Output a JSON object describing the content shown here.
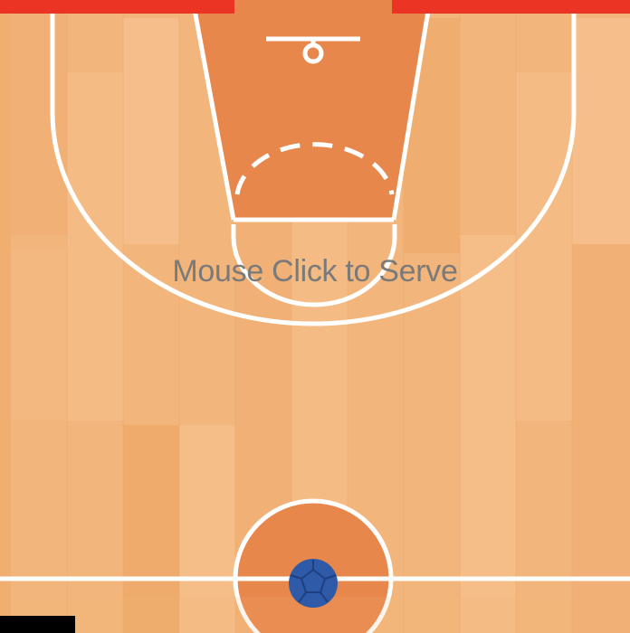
{
  "game": {
    "serve_message": "Mouse Click to Serve"
  },
  "colors": {
    "bricks": "#ec3425",
    "court_floor": "#f2b57b",
    "paint": "#e8874c",
    "court_lines": "#ffffff",
    "ball": "#2e5aa8",
    "message_text": "#7a7a7a",
    "paddle": "#000000"
  },
  "icons": {
    "ball": "ball-icon"
  }
}
